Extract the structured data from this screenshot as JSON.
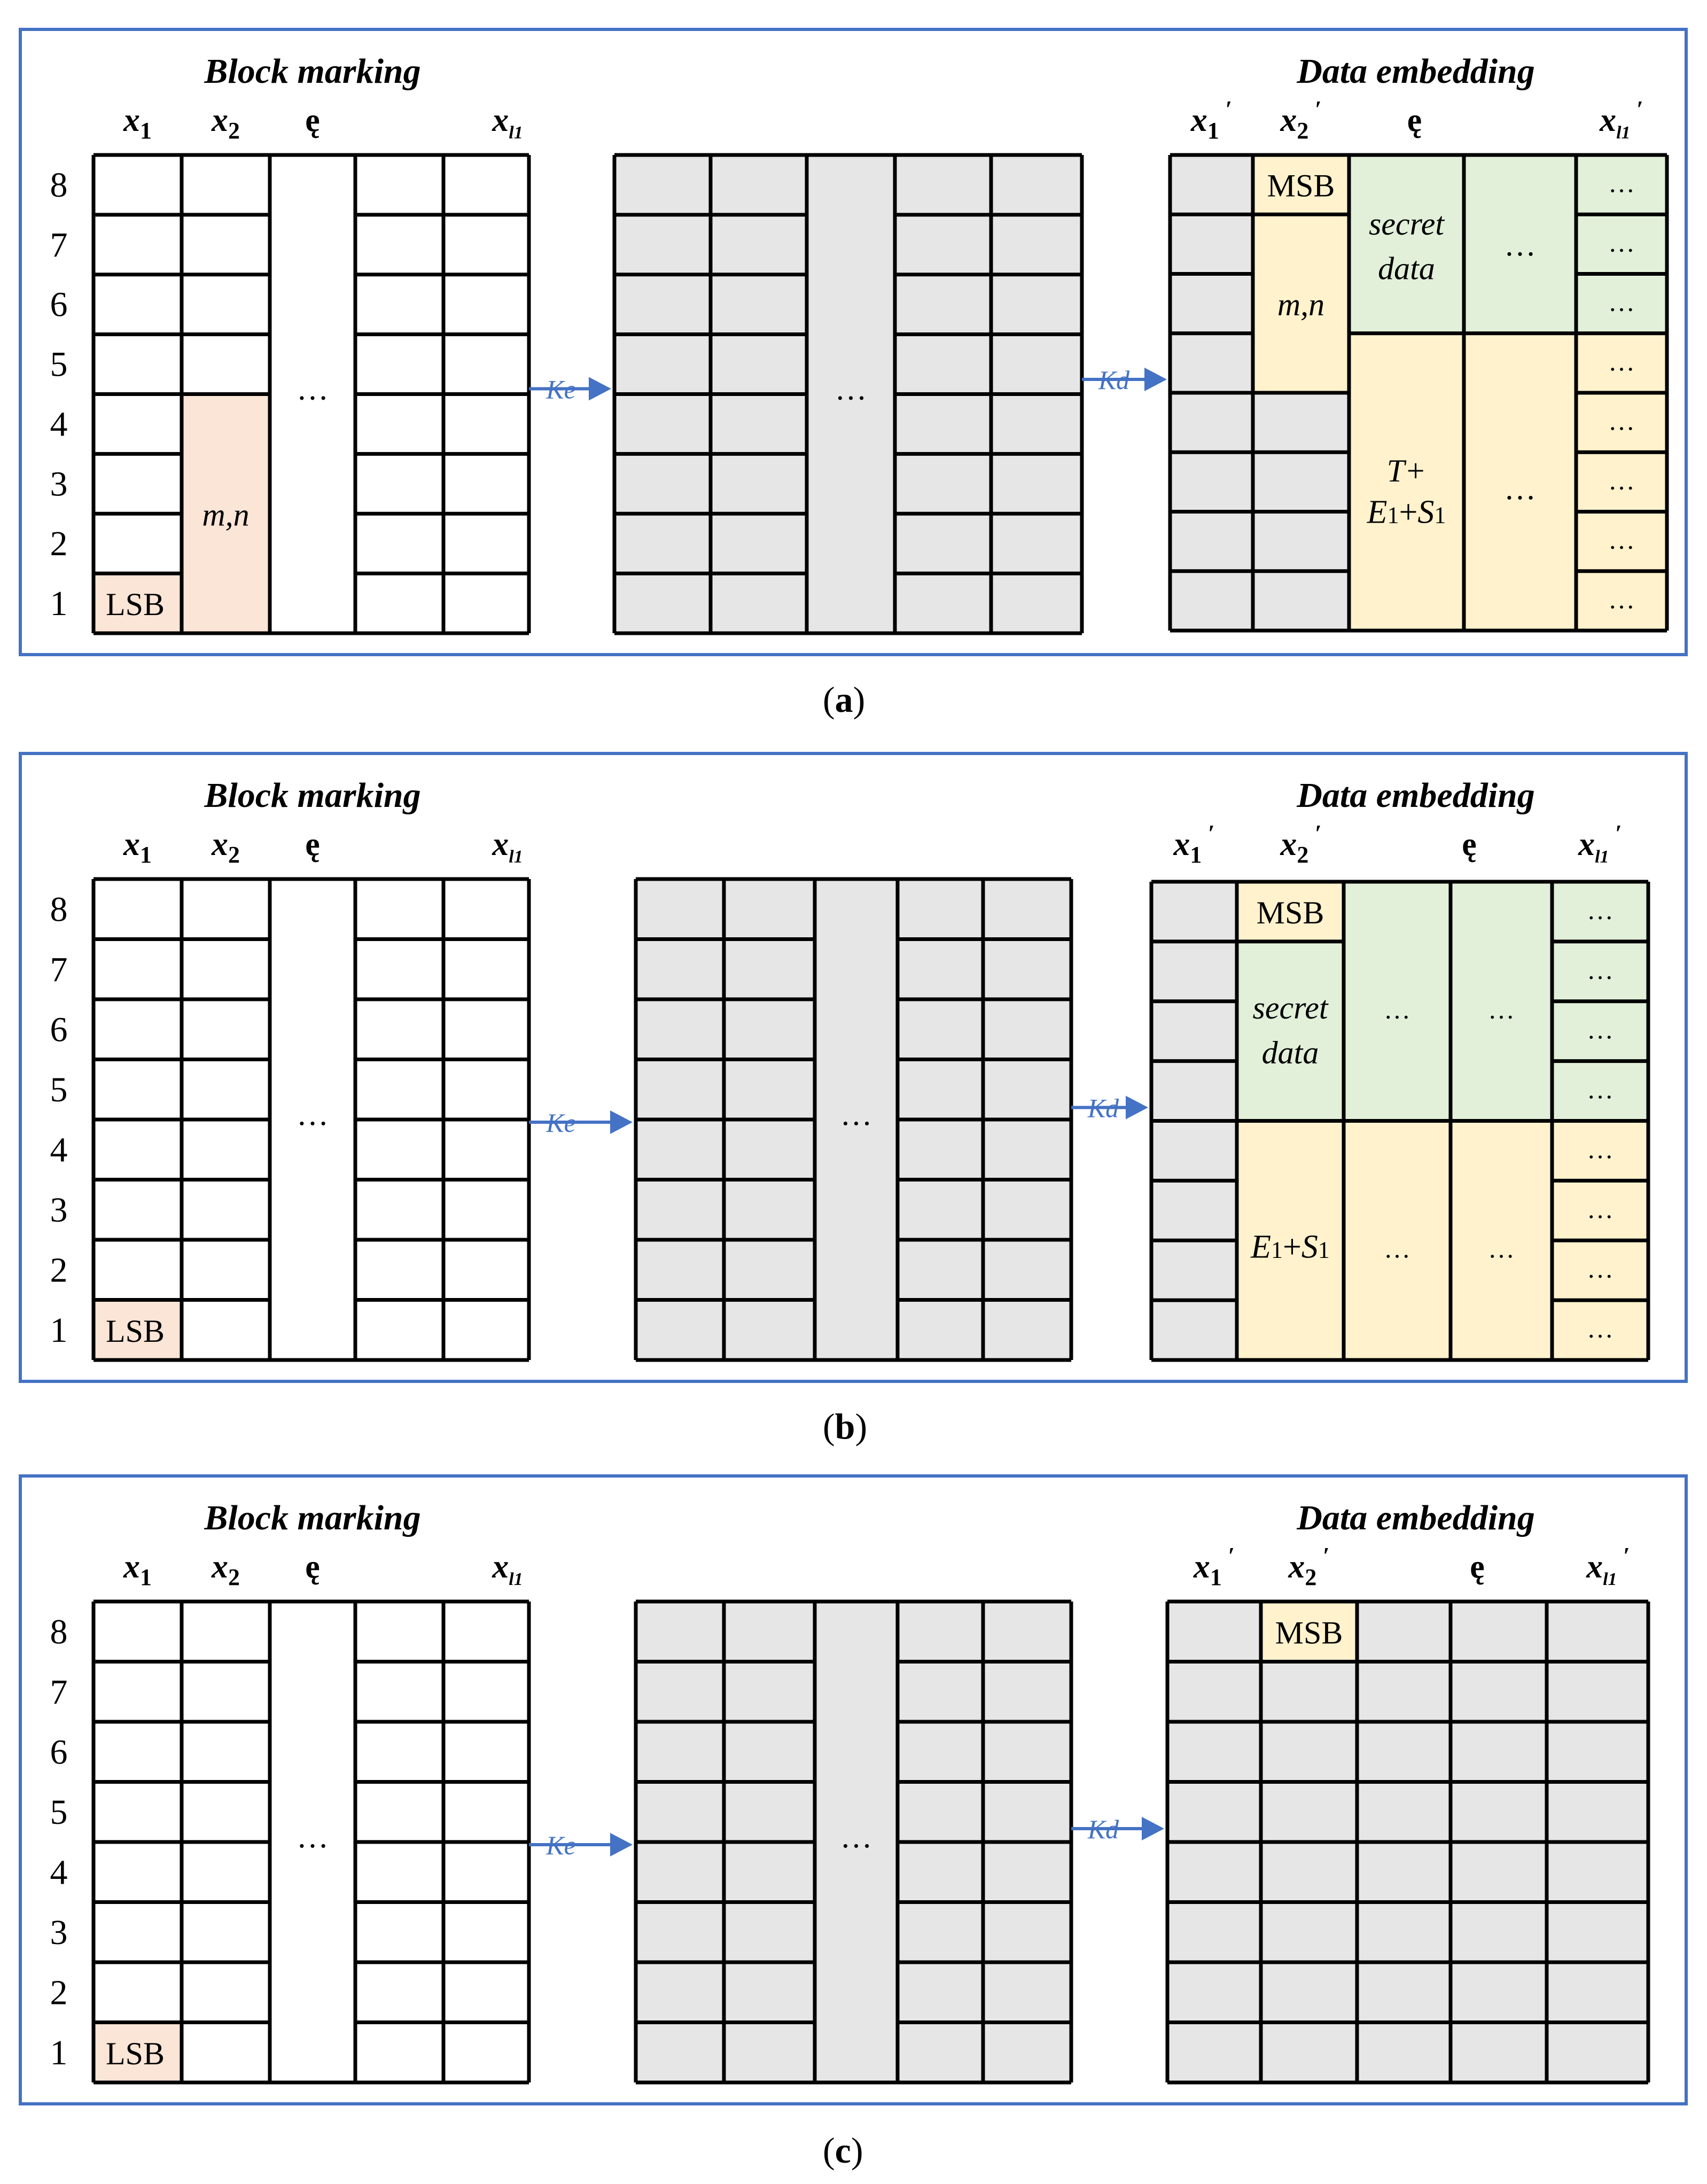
{
  "panels": [
    {
      "id": "a",
      "caption": "a",
      "left_title": "Block marking",
      "right_title": "Data embedding",
      "left_col_labels": [
        "x1",
        "x2",
        "ę",
        "xl1"
      ],
      "right_col_labels": [
        "x1′",
        "x2′",
        "ę",
        "xl1′"
      ],
      "row_labels": [
        "8",
        "7",
        "6",
        "5",
        "4",
        "3",
        "2",
        "1"
      ],
      "lsb_label": "LSB",
      "mn_label": "m,n",
      "ellipsis": "…",
      "ke_label": "Ke",
      "kd_label": "Kd",
      "msb_label": "MSB",
      "right_mn_label": "m,n",
      "secret_label_1": "secret",
      "secret_label_2": "data",
      "yellow_label_1": "T+",
      "yellow_label_2": "E1+S1"
    },
    {
      "id": "b",
      "caption": "b",
      "left_title": "Block marking",
      "right_title": "Data embedding",
      "left_col_labels": [
        "x1",
        "x2",
        "ę",
        "xl1"
      ],
      "right_col_labels": [
        "x1′",
        "x2′",
        "ę",
        "xl1′"
      ],
      "row_labels": [
        "8",
        "7",
        "6",
        "5",
        "4",
        "3",
        "2",
        "1"
      ],
      "lsb_label": "LSB",
      "ellipsis": "…",
      "ke_label": "Ke",
      "kd_label": "Kd",
      "msb_label": "MSB",
      "secret_label_1": "secret",
      "secret_label_2": "data",
      "yellow_label_2": "E1+S1"
    },
    {
      "id": "c",
      "caption": "c",
      "left_title": "Block marking",
      "right_title": "Data embedding",
      "left_col_labels": [
        "x1",
        "x2",
        "ę",
        "xl1"
      ],
      "right_col_labels": [
        "x1′",
        "x2′",
        "ę",
        "xl1′"
      ],
      "row_labels": [
        "8",
        "7",
        "6",
        "5",
        "4",
        "3",
        "2",
        "1"
      ],
      "lsb_label": "LSB",
      "ellipsis": "…",
      "ke_label": "Ke",
      "kd_label": "Kd",
      "msb_label": "MSB"
    }
  ],
  "colors": {
    "frame": "#4472C4",
    "arrow": "#4472C4",
    "grid_line": "#000000",
    "gray_fill": "#E6E6E6",
    "lsb_fill": "#FBE5D6",
    "msb_fill": "#FFF2CC",
    "secret_fill": "#E2F0D9",
    "yellow_fill": "#FFF2CC"
  }
}
